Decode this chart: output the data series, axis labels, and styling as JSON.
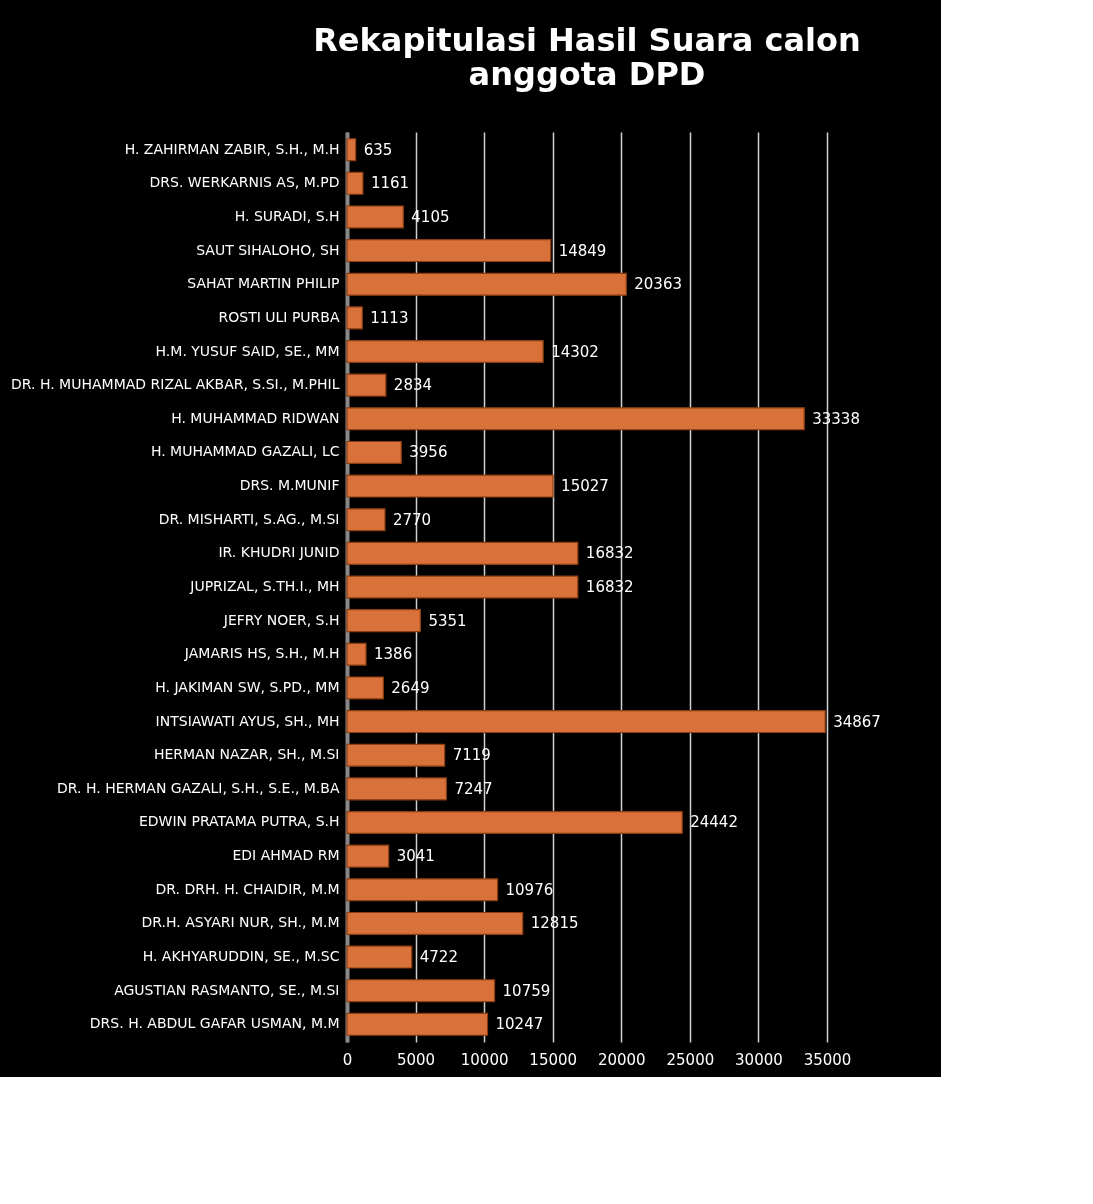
{
  "chart_data": {
    "type": "bar",
    "orientation": "horizontal",
    "title": "Rekapitulasi Hasil Suara calon anggota DPD",
    "categories": [
      "H. ZAHIRMAN ZABIR, S.H., M.H",
      "DRS. WERKARNIS AS, M.PD",
      "H. SURADI, S.H",
      "SAUT SIHALOHO, SH",
      "SAHAT MARTIN PHILIP",
      "ROSTI ULI PURBA",
      "H.M. YUSUF SAID, SE., MM",
      "DR. H. MUHAMMAD RIZAL AKBAR, S.SI., M.PHIL",
      "H. MUHAMMAD RIDWAN",
      "H. MUHAMMAD GAZALI, LC",
      "DRS. M.MUNIF",
      "DR. MISHARTI, S.AG., M.SI",
      "IR. KHUDRI JUNID",
      "JUPRIZAL, S.TH.I., MH",
      "JEFRY NOER, S.H",
      "JAMARIS HS, S.H., M.H",
      "H. JAKIMAN SW, S.PD., MM",
      "INTSIAWATI AYUS, SH., MH",
      "HERMAN NAZAR, SH., M.SI",
      "DR. H. HERMAN GAZALI, S.H., S.E., M.BA",
      "EDWIN PRATAMA PUTRA, S.H",
      "EDI AHMAD RM",
      "DR. DRH. H. CHAIDIR, M.M",
      "DR.H. ASYARI NUR, SH., M.M",
      "H. AKHYARUDDIN, SE., M.SC",
      "AGUSTIAN RASMANTO, SE., M.SI",
      "DRS. H. ABDUL GAFAR USMAN, M.M"
    ],
    "values": [
      635,
      1161,
      4105,
      14849,
      20363,
      1113,
      14302,
      2834,
      33338,
      3956,
      15027,
      2770,
      16832,
      16832,
      5351,
      1386,
      2649,
      34867,
      7119,
      7247,
      24442,
      3041,
      10976,
      12815,
      4722,
      10759,
      10247
    ],
    "color": "#d9713a",
    "xlim": [
      0,
      35000
    ],
    "xticks": [
      0,
      5000,
      10000,
      15000,
      20000,
      25000,
      30000,
      35000
    ],
    "grid": "x",
    "data_labels": true
  }
}
